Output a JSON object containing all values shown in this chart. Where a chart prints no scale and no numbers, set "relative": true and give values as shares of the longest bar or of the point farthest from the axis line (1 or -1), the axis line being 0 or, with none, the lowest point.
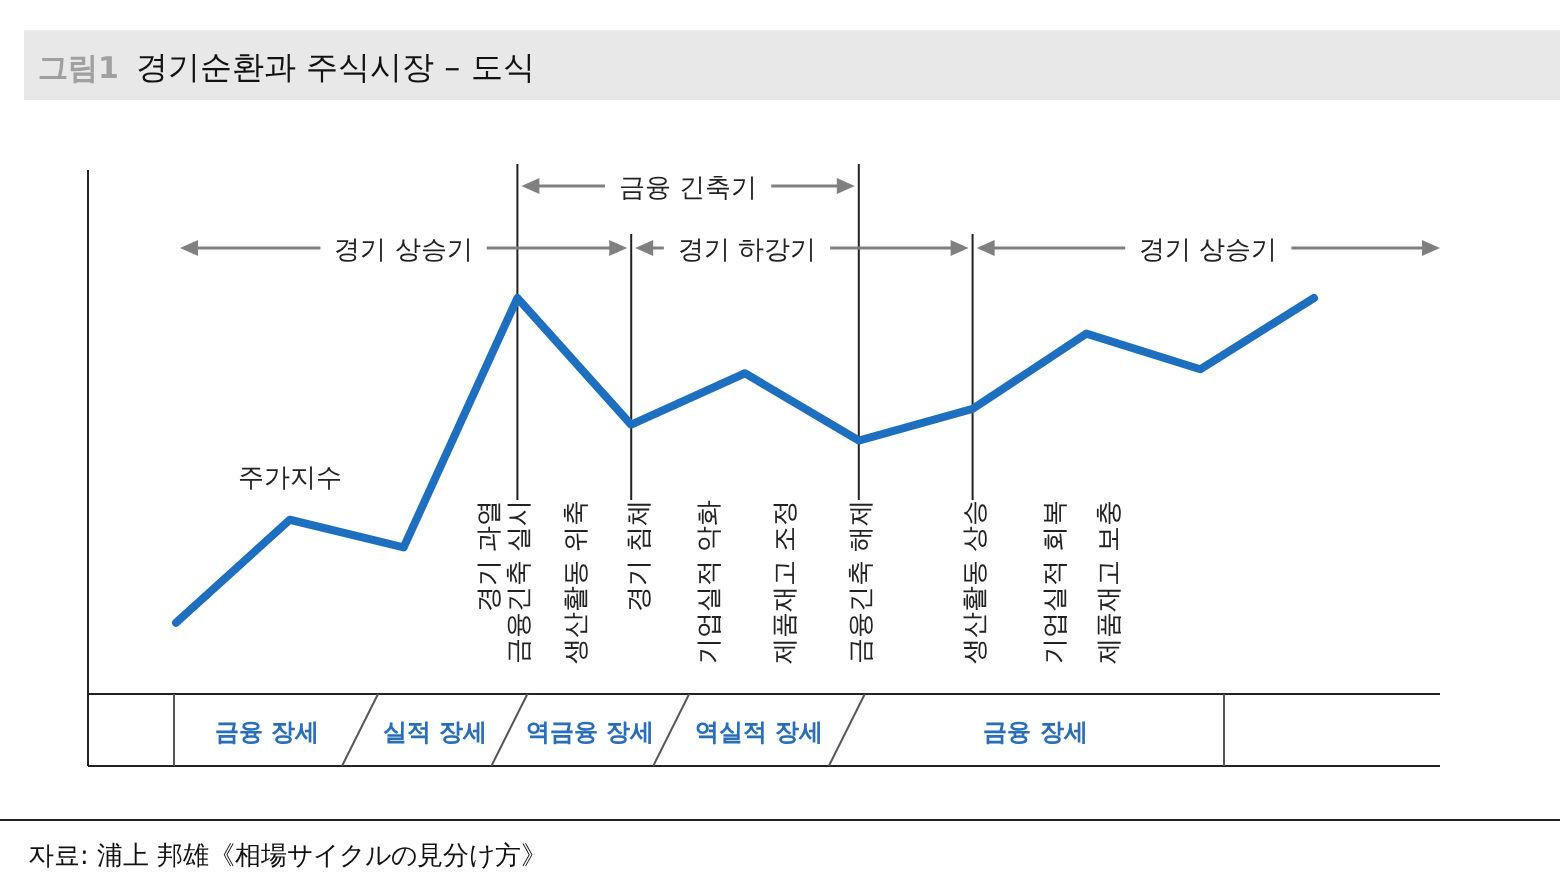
{
  "chart_data": {
    "type": "line",
    "relative": true,
    "subtitle": "그림1",
    "title": "경기순환과 주식시장 – 도식",
    "categories": [
      null,
      null,
      null,
      null,
      null,
      null,
      null,
      null,
      null,
      null,
      null
    ],
    "series": [
      {
        "name": "주가지수",
        "color": "#1f6fc0",
        "values": [
          0.18,
          0.44,
          0.37,
          1,
          0.68,
          0.81,
          0.64,
          0.72,
          0.91,
          0.82,
          1
        ]
      }
    ],
    "annotations": [
      "경기 과열",
      "금융긴축 실시",
      "생산활동 위축",
      "경기 침체",
      "기업실적 악화",
      "제품재고 조정",
      "금융긴축 해제",
      "생산활동 상승",
      "기업실적 회복",
      "제품재고 보충",
      "금융 긴축기",
      "경기 상승기",
      "경기 하강기",
      "경기 상승기",
      "금융 장세",
      "실적 장세",
      "역금융 장세",
      "역실적 장세",
      "금융 장세",
      "자료: 浦上 邦雄《相場サイクルの見分け方》"
    ]
  }
}
